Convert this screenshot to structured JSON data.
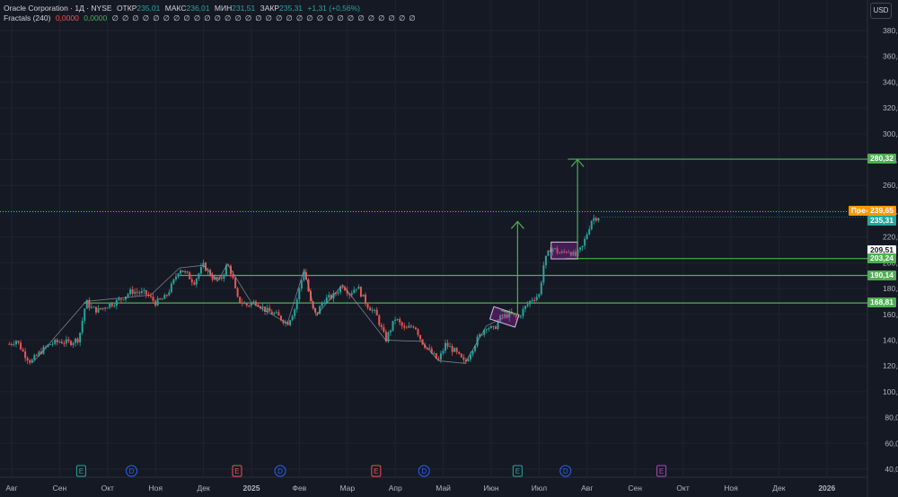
{
  "legend": {
    "title": "Oracle Corporation · 1Д · NYSE",
    "open_label": "ОТКР",
    "open": "235,01",
    "high_label": "МАКС",
    "high": "236,01",
    "low_label": "МИН",
    "low": "231,51",
    "close_label": "ЗАКР",
    "close": "235,31",
    "change": "+1,31 (+0,56%)",
    "fractals_label": "Fractals (240)",
    "fractal_up": "0,0000",
    "fractal_down": "0,0000",
    "zeros": [
      "∅",
      "∅",
      "∅",
      "∅",
      "∅",
      "∅",
      "∅",
      "∅",
      "∅",
      "∅",
      "∅",
      "∅",
      "∅",
      "∅",
      "∅",
      "∅",
      "∅",
      "∅",
      "∅",
      "∅",
      "∅",
      "∅",
      "∅",
      "∅",
      "∅",
      "∅",
      "∅",
      "∅",
      "∅",
      "∅"
    ]
  },
  "currency": "USD",
  "price_tags": {
    "premarket_label": "Пре-",
    "premarket": "239,65",
    "last": "235,31",
    "cursor": "209,51",
    "target": "280,32",
    "level_203": "203,24",
    "level_190": "190,14",
    "level_168": "168,81"
  },
  "colors": {
    "background": "#151924",
    "up": "#26a69a",
    "down": "#ef5350",
    "level_line": "#4caf50",
    "premarket": "#ff9800",
    "grid": "#1f2330"
  },
  "chart_data": {
    "type": "candlestick",
    "title": "Oracle Corporation · 1Д · NYSE",
    "y_ticks": [
      "40,00",
      "60,00",
      "80,00",
      "100,00",
      "120,00",
      "140,00",
      "160,00",
      "180,00",
      "200,00",
      "220,00",
      "240,00",
      "260,00",
      "280,00",
      "300,00",
      "320,00",
      "340,00",
      "360,00",
      "380,00"
    ],
    "ylim": [
      40,
      390
    ],
    "x_ticks": [
      "Авг",
      "Сен",
      "Окт",
      "Ноя",
      "Дек",
      "2025",
      "Фев",
      "Мар",
      "Апр",
      "Май",
      "Июн",
      "Июл",
      "Авг",
      "Сен",
      "Окт",
      "Ноя",
      "Дек",
      "2026"
    ],
    "x_range_months": [
      0,
      17.6
    ],
    "price_path": [
      [
        -0.05,
        137
      ],
      [
        0.1,
        140
      ],
      [
        0.25,
        130
      ],
      [
        0.4,
        123
      ],
      [
        0.6,
        131
      ],
      [
        0.8,
        137
      ],
      [
        1.0,
        139
      ],
      [
        1.2,
        138
      ],
      [
        1.4,
        141
      ],
      [
        1.55,
        170
      ],
      [
        1.65,
        165
      ],
      [
        1.8,
        163
      ],
      [
        2.0,
        167
      ],
      [
        2.2,
        170
      ],
      [
        2.5,
        178
      ],
      [
        2.8,
        176
      ],
      [
        3.0,
        169
      ],
      [
        3.2,
        173
      ],
      [
        3.35,
        183
      ],
      [
        3.5,
        196
      ],
      [
        3.65,
        191
      ],
      [
        3.8,
        185
      ],
      [
        4.0,
        198
      ],
      [
        4.2,
        188
      ],
      [
        4.35,
        186
      ],
      [
        4.5,
        199
      ],
      [
        4.6,
        190
      ],
      [
        4.7,
        172
      ],
      [
        4.9,
        167
      ],
      [
        5.1,
        170
      ],
      [
        5.3,
        163
      ],
      [
        5.5,
        160
      ],
      [
        5.75,
        153
      ],
      [
        5.9,
        164
      ],
      [
        6.1,
        195
      ],
      [
        6.25,
        166
      ],
      [
        6.35,
        159
      ],
      [
        6.5,
        171
      ],
      [
        6.7,
        174
      ],
      [
        6.9,
        183
      ],
      [
        7.05,
        176
      ],
      [
        7.2,
        182
      ],
      [
        7.4,
        168
      ],
      [
        7.6,
        160
      ],
      [
        7.8,
        140
      ],
      [
        8.0,
        157
      ],
      [
        8.2,
        148
      ],
      [
        8.4,
        152
      ],
      [
        8.55,
        139
      ],
      [
        8.75,
        130
      ],
      [
        8.9,
        124
      ],
      [
        9.05,
        137
      ],
      [
        9.25,
        131
      ],
      [
        9.45,
        122
      ],
      [
        9.7,
        140
      ],
      [
        9.9,
        151
      ],
      [
        10.05,
        148
      ],
      [
        10.2,
        158
      ],
      [
        10.4,
        160
      ],
      [
        10.55,
        157
      ],
      [
        10.7,
        165
      ],
      [
        10.85,
        172
      ],
      [
        11.0,
        175
      ],
      [
        11.1,
        200
      ],
      [
        11.25,
        212
      ],
      [
        11.45,
        207
      ],
      [
        11.6,
        210
      ],
      [
        11.75,
        205
      ],
      [
        11.9,
        212
      ],
      [
        12.1,
        234
      ],
      [
        12.25,
        236
      ]
    ],
    "levels": [
      {
        "price": 203.24,
        "from_month": 11.55,
        "label": "203,24"
      },
      {
        "price": 190.14,
        "from_month": 3.5,
        "label": "190,14"
      },
      {
        "price": 168.81,
        "from_month": 1.5,
        "label": "168,81"
      },
      {
        "price": 280.32,
        "from_month": 11.6,
        "label": "280,32"
      }
    ],
    "last_price": 235.31,
    "premarket_price": 239.65,
    "event_markers": [
      {
        "month": 1.45,
        "type": "E"
      },
      {
        "month": 2.5,
        "type": "D"
      },
      {
        "month": 4.7,
        "type": "E"
      },
      {
        "month": 5.6,
        "type": "D"
      },
      {
        "month": 7.6,
        "type": "E"
      },
      {
        "month": 8.6,
        "type": "D"
      },
      {
        "month": 10.55,
        "type": "E"
      },
      {
        "month": 11.55,
        "type": "D"
      },
      {
        "month": 13.55,
        "type": "E"
      }
    ]
  }
}
